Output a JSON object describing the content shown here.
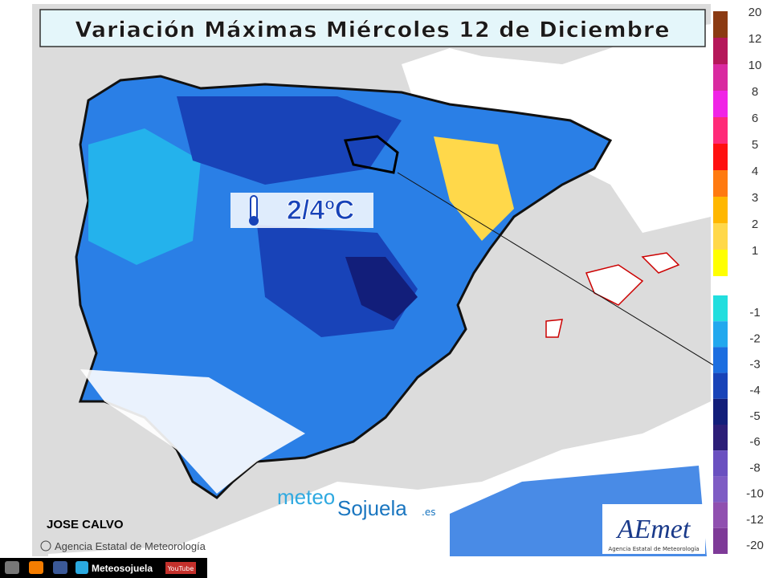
{
  "header": {
    "title": "Variación Máximas Miércoles 12 de Diciembre"
  },
  "annotation": {
    "text": "2/4ºC"
  },
  "author": "JOSE CALVO",
  "source": "Agencia Estatal de Meteorología",
  "watermark": {
    "part1": "meteo",
    "part2": "Sojuela",
    "suffix": ".es"
  },
  "logo": {
    "name": "AEmet",
    "subtitle": "Agencia Estatal de Meteorología"
  },
  "footer": {
    "site": "Meteosojuela",
    "video": "YouTube"
  },
  "legend": {
    "positive": [
      {
        "label": "20",
        "color": "#8b3a12"
      },
      {
        "label": "12",
        "color": "#b5185a"
      },
      {
        "label": "10",
        "color": "#d92aa0"
      },
      {
        "label": "8",
        "color": "#f024e6"
      },
      {
        "label": "6",
        "color": "#ff2a78"
      },
      {
        "label": "5",
        "color": "#ff1010"
      },
      {
        "label": "4",
        "color": "#ff7a10"
      },
      {
        "label": "3",
        "color": "#ffb700"
      },
      {
        "label": "2",
        "color": "#ffd84a"
      },
      {
        "label": "1",
        "color": "#ffff00"
      }
    ],
    "negative": [
      {
        "label": "-1",
        "color": "#22dede"
      },
      {
        "label": "-2",
        "color": "#22a8ee"
      },
      {
        "label": "-3",
        "color": "#1c6ee0"
      },
      {
        "label": "-4",
        "color": "#1843b8"
      },
      {
        "label": "-5",
        "color": "#121e7a"
      },
      {
        "label": "-6",
        "color": "#2c1e78"
      },
      {
        "label": "-8",
        "color": "#6a50c0"
      },
      {
        "label": "-10",
        "color": "#7e5cc4"
      },
      {
        "label": "-12",
        "color": "#9050b0"
      },
      {
        "label": "-20",
        "color": "#7e3a98"
      }
    ]
  }
}
